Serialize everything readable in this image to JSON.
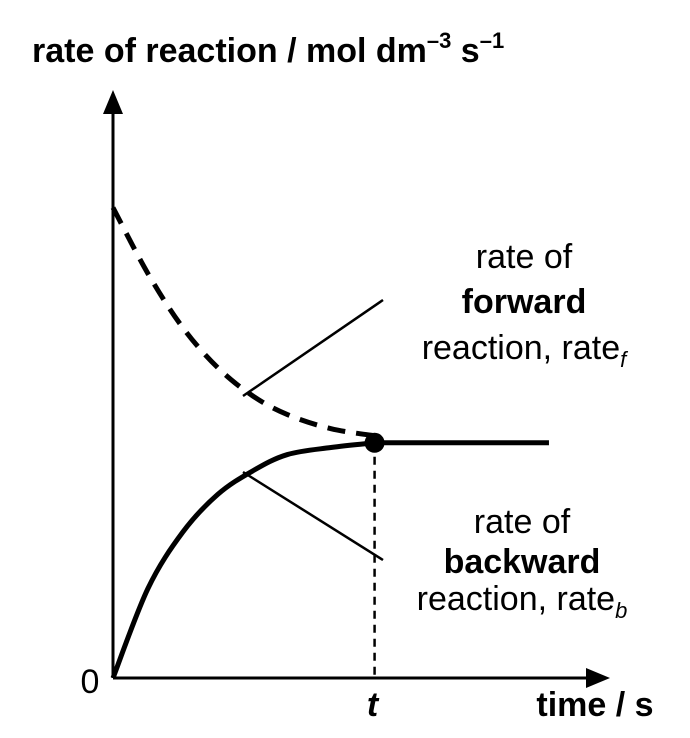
{
  "chart_data": {
    "type": "line",
    "ylabel": "rate of reaction / mol dm",
    "ylabel_exp1": "–3",
    "ylabel_mid": " s",
    "ylabel_exp2": "–1",
    "xlabel": "time / s",
    "origin_label": "0",
    "t_label": "t",
    "forward_label": {
      "line1": "rate of",
      "line2": "forward",
      "line3": "reaction, rate",
      "sub": "f"
    },
    "backward_label": {
      "line1": "rate of",
      "line2": "backward",
      "line3": "reaction, rate",
      "sub": "b"
    },
    "series": [
      {
        "key": "forward",
        "style": "dashed",
        "x": [
          0,
          0.2,
          0.4,
          0.6,
          0.8,
          1.0,
          1.25,
          1.5,
          2.0,
          2.5
        ],
        "y": [
          1.0,
          0.86,
          0.745,
          0.66,
          0.6,
          0.56,
          0.53,
          0.515,
          0.5,
          0.5
        ]
      },
      {
        "key": "backward",
        "style": "solid",
        "x": [
          0,
          0.2,
          0.4,
          0.6,
          0.8,
          1.0,
          1.25,
          1.5,
          2.0,
          2.5
        ],
        "y": [
          0,
          0.19,
          0.31,
          0.39,
          0.44,
          0.475,
          0.49,
          0.5,
          0.5,
          0.5
        ]
      }
    ],
    "equilibrium_time": 1.5,
    "equilibrium_rate": 0.5,
    "xlim": [
      0,
      2.85
    ],
    "ylim": [
      0,
      1.25
    ],
    "grid": false
  }
}
